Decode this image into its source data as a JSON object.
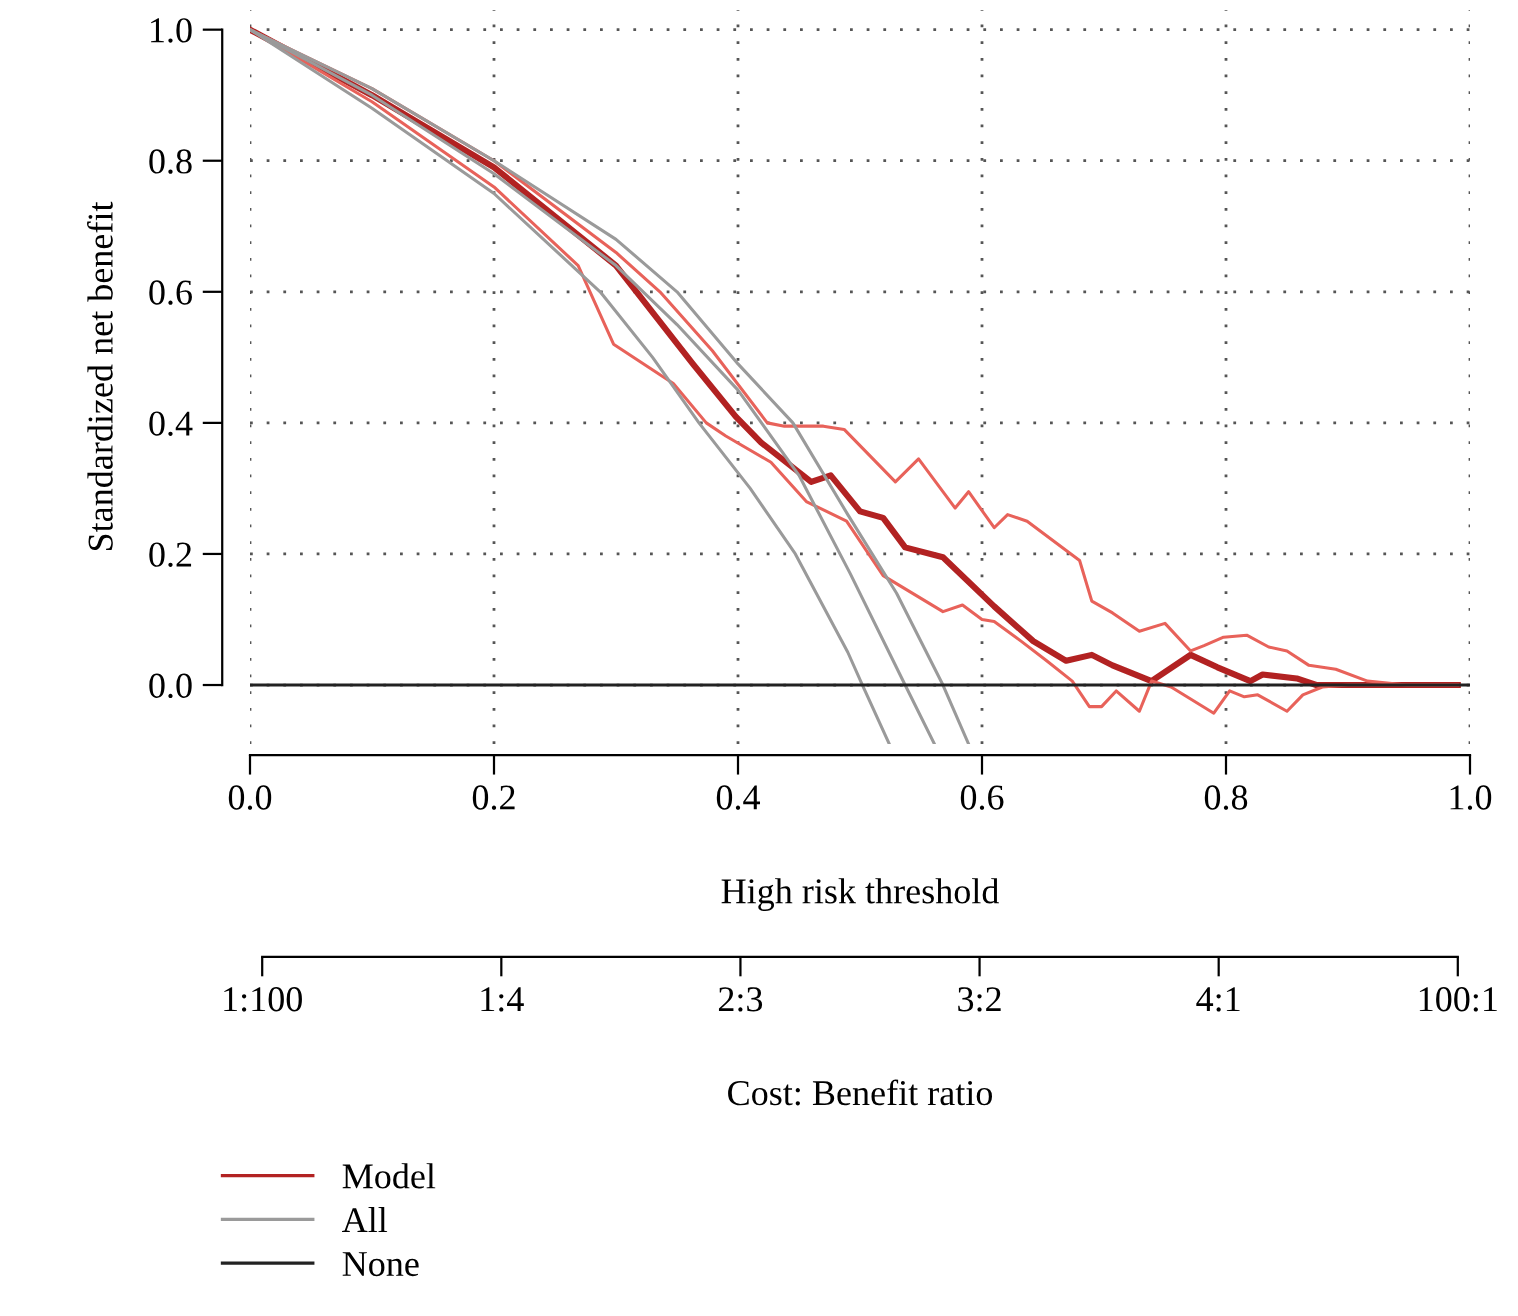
{
  "chart_data": {
    "type": "line",
    "xlabel": "High risk threshold",
    "ylabel": "Standardized net benefit",
    "x2label": "Cost: Benefit ratio",
    "xlim": [
      0,
      1
    ],
    "xticks": [
      {
        "value": 0,
        "label": "0.0"
      },
      0.2,
      0.4,
      0.6,
      0.8,
      {
        "value": 1,
        "label": "1.0"
      }
    ],
    "ylim": [
      -0.09,
      1.03
    ],
    "yticks": [
      {
        "value": 0,
        "label": "0.0"
      },
      0.2,
      0.4,
      0.6,
      0.8,
      {
        "value": 1,
        "label": "1.0"
      }
    ],
    "annotations": [
      "1:100",
      "1:4",
      "2:3",
      "3:2",
      "4:1",
      "100:1"
    ],
    "grid": true,
    "legend": "bottom left",
    "line_style": "solid",
    "marker": "none",
    "series": [
      {
        "name": "Model",
        "color": "#b22222",
        "x": [
          0,
          0.1,
          0.2,
          0.3,
          0.363,
          0.398,
          0.419,
          0.46,
          0.476,
          0.5,
          0.519,
          0.537,
          0.568,
          0.61,
          0.642,
          0.669,
          0.69,
          0.707,
          0.739,
          0.771,
          0.793,
          0.82,
          0.83,
          0.858,
          0.874,
          0.95,
          0.99
        ],
        "values": [
          1,
          0.9,
          0.79,
          0.64,
          0.49,
          0.41,
          0.37,
          0.31,
          0.32,
          0.265,
          0.255,
          0.21,
          0.195,
          0.12,
          0.067,
          0.037,
          0.046,
          0.03,
          0.006,
          0.046,
          0.027,
          0.006,
          0.016,
          0.01,
          0,
          0,
          0
        ]
      },
      {
        "color": "#e8625a",
        "x": [
          0,
          0.1,
          0.2,
          0.3,
          0.336,
          0.379,
          0.424,
          0.438,
          0.47,
          0.487,
          0.529,
          0.548,
          0.578,
          0.589,
          0.61,
          0.621,
          0.637,
          0.68,
          0.69,
          0.707,
          0.729,
          0.75,
          0.771,
          0.782,
          0.798,
          0.817,
          0.835,
          0.85,
          0.868,
          0.89,
          0.916,
          0.948,
          0.99
        ],
        "values": [
          1,
          0.91,
          0.8,
          0.66,
          0.6,
          0.51,
          0.4,
          0.395,
          0.395,
          0.39,
          0.31,
          0.345,
          0.27,
          0.295,
          0.24,
          0.26,
          0.25,
          0.19,
          0.128,
          0.11,
          0.082,
          0.094,
          0.052,
          0.06,
          0.073,
          0.076,
          0.058,
          0.052,
          0.03,
          0.024,
          0.006,
          0,
          0
        ]
      },
      {
        "color": "#e8625a",
        "x": [
          0,
          0.1,
          0.2,
          0.269,
          0.298,
          0.347,
          0.374,
          0.39,
          0.427,
          0.456,
          0.489,
          0.519,
          0.568,
          0.584,
          0.6,
          0.61,
          0.632,
          0.653,
          0.674,
          0.688,
          0.698,
          0.71,
          0.729,
          0.739,
          0.755,
          0.79,
          0.803,
          0.815,
          0.826,
          0.85,
          0.863,
          0.879,
          0.9,
          0.95,
          0.99
        ],
        "values": [
          1,
          0.89,
          0.76,
          0.64,
          0.52,
          0.46,
          0.4,
          0.38,
          0.34,
          0.28,
          0.25,
          0.167,
          0.112,
          0.122,
          0.1,
          0.097,
          0.067,
          0.037,
          0.006,
          -0.033,
          -0.033,
          -0.009,
          -0.04,
          0.006,
          -0.003,
          -0.043,
          -0.009,
          -0.018,
          -0.015,
          -0.04,
          -0.015,
          -0.003,
          0,
          0,
          0
        ]
      },
      {
        "name": "All",
        "color": "#9a9a9a",
        "x": [
          0,
          0.1,
          0.2,
          0.3,
          0.35,
          0.4,
          0.45,
          0.492,
          0.537,
          0.561
        ],
        "values": [
          1,
          0.9,
          0.78,
          0.64,
          0.55,
          0.45,
          0.32,
          0.17,
          0,
          -0.09
        ]
      },
      {
        "color": "#9a9a9a",
        "x": [
          0,
          0.1,
          0.2,
          0.3,
          0.35,
          0.4,
          0.445,
          0.49,
          0.53,
          0.568,
          0.589
        ],
        "values": [
          1,
          0.91,
          0.8,
          0.68,
          0.6,
          0.49,
          0.4,
          0.26,
          0.14,
          0,
          -0.09
        ]
      },
      {
        "color": "#9a9a9a",
        "x": [
          0,
          0.1,
          0.2,
          0.287,
          0.33,
          0.368,
          0.41,
          0.447,
          0.49,
          0.502,
          0.524
        ],
        "values": [
          1,
          0.88,
          0.75,
          0.6,
          0.5,
          0.4,
          0.3,
          0.2,
          0.05,
          0,
          -0.09
        ]
      },
      {
        "name": "None",
        "color": "#222222",
        "x": [
          0,
          1
        ],
        "values": [
          0,
          0
        ]
      }
    ]
  }
}
